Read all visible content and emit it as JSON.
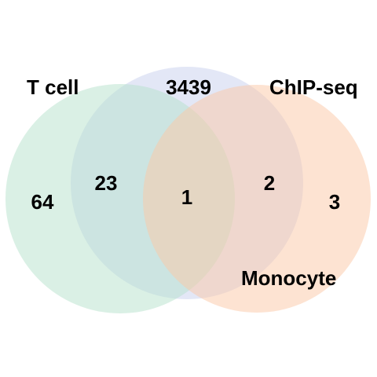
{
  "diagram": {
    "type": "venn",
    "sets": [
      {
        "id": "chipseq",
        "label": "ChIP-seq",
        "color": "#c8d0ee"
      },
      {
        "id": "tcell",
        "label": "T cell",
        "color": "#b5e2cc"
      },
      {
        "id": "monocyte",
        "label": "Monocyte",
        "color": "#fbc7a6"
      }
    ],
    "regions": {
      "chipseq_only": "3439",
      "tcell_only": "64",
      "monocyte_only": "3",
      "tcell_chipseq": "23",
      "chipseq_monocyte": "2",
      "all_three": "1"
    }
  }
}
